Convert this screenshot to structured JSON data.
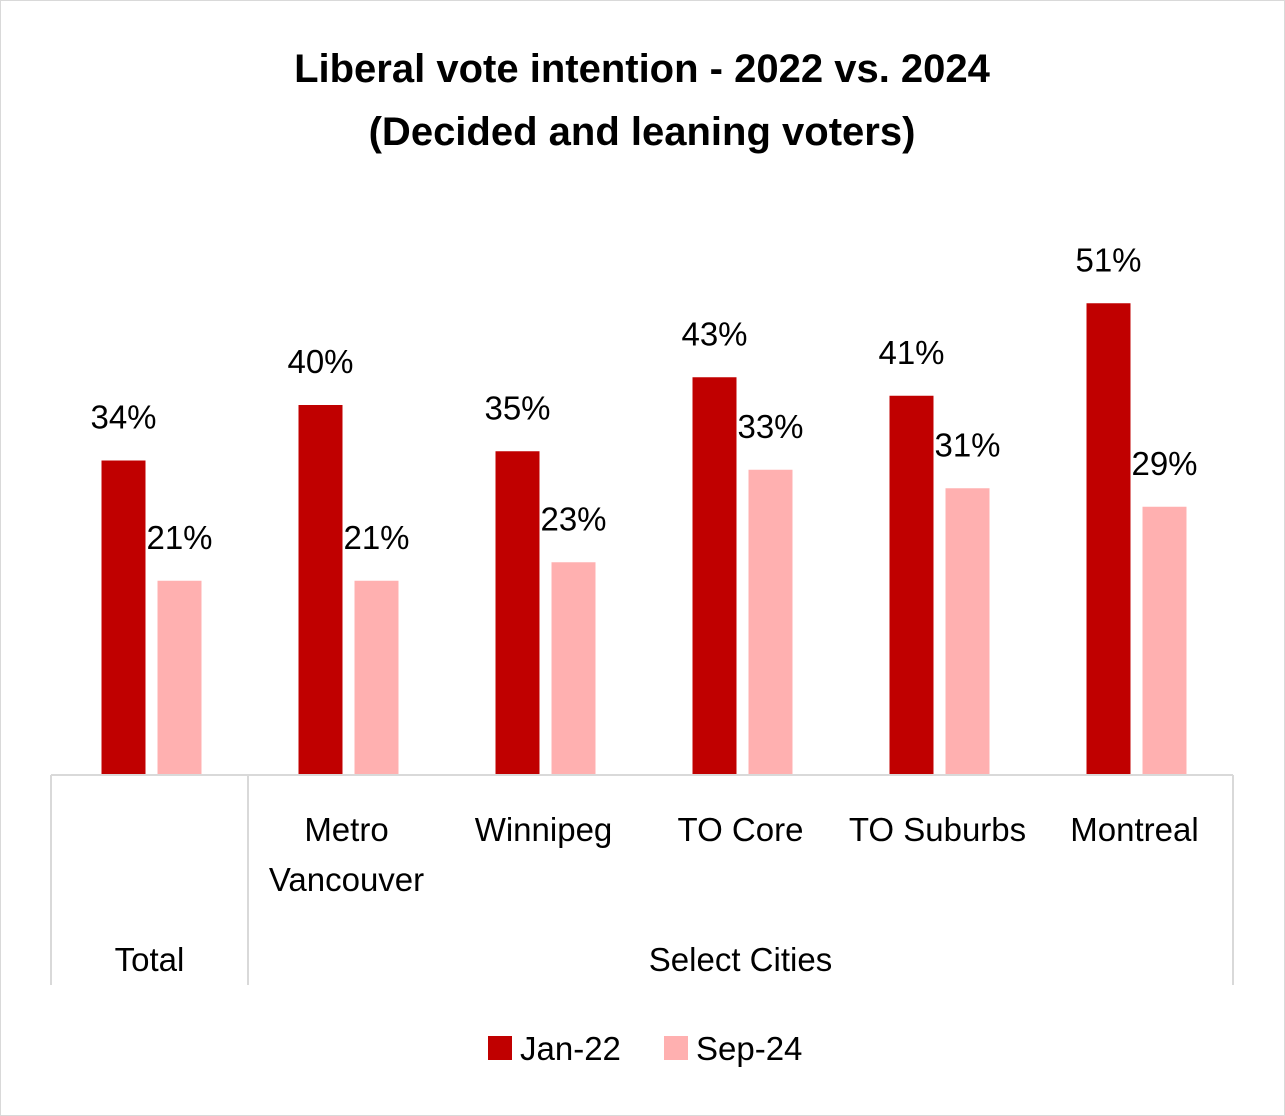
{
  "chart_data": {
    "type": "bar",
    "title": "Liberal vote intention - 2022 vs. 2024",
    "subtitle": "(Decided and leaning voters)",
    "categories": [
      [
        "Total"
      ],
      [
        "Metro",
        "Vancouver"
      ],
      [
        "Winnipeg"
      ],
      [
        "TO Core"
      ],
      [
        "TO Suburbs"
      ],
      [
        "Montreal"
      ]
    ],
    "groups": [
      {
        "label": "Total",
        "span": [
          0,
          0
        ]
      },
      {
        "label": "Select Cities",
        "span": [
          1,
          5
        ]
      }
    ],
    "series": [
      {
        "name": "Jan-22",
        "color": "#c00000",
        "values": [
          34,
          40,
          35,
          43,
          41,
          51
        ],
        "labels": [
          "34%",
          "40%",
          "35%",
          "43%",
          "41%",
          "51%"
        ]
      },
      {
        "name": "Sep-24",
        "color": "#ffb0b0",
        "values": [
          21,
          21,
          23,
          33,
          31,
          29
        ],
        "labels": [
          "21%",
          "21%",
          "23%",
          "33%",
          "31%",
          "29%"
        ]
      }
    ],
    "ylim": [
      0,
      55
    ],
    "grid": false,
    "legend_position": "bottom"
  }
}
